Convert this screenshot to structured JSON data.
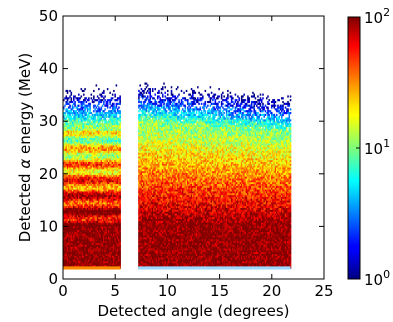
{
  "chart_data": {
    "type": "heatmap",
    "xlabel": "Detected angle (degrees)",
    "ylabel_prefix": "Detected ",
    "ylabel_symbol": "α",
    "ylabel_suffix": " energy (MeV)",
    "xlim": [
      0,
      25
    ],
    "ylim": [
      0,
      50
    ],
    "xticks": [
      "0",
      "5",
      "10",
      "15",
      "20",
      "25"
    ],
    "yticks": [
      "0",
      "10",
      "20",
      "30",
      "40",
      "50"
    ],
    "xtick_values": [
      0,
      5,
      10,
      15,
      20,
      25
    ],
    "ytick_values": [
      0,
      10,
      20,
      30,
      40,
      50
    ],
    "colorbar": {
      "scale": "log",
      "range": [
        1,
        100
      ],
      "ticks": [
        {
          "value": 1,
          "base": "10",
          "exp": "0"
        },
        {
          "value": 10,
          "base": "10",
          "exp": "1"
        },
        {
          "value": 100,
          "base": "10",
          "exp": "2"
        }
      ],
      "colormap": "jet"
    },
    "regions": [
      {
        "angle_range": [
          0,
          5.5
        ],
        "energy_range": [
          2,
          38
        ]
      },
      {
        "angle_range": [
          7.2,
          21.8
        ],
        "energy_range": [
          2,
          40
        ]
      }
    ],
    "grid": false
  }
}
